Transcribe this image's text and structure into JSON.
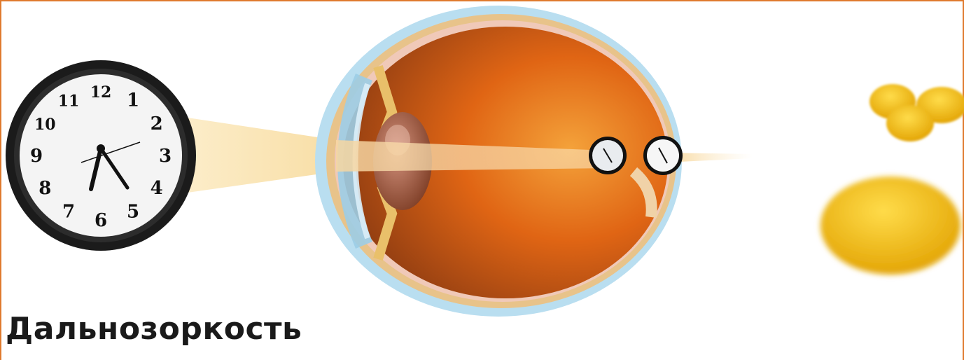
{
  "caption": "Дальнозоркость",
  "clock_numerals": [
    "12",
    "1",
    "2",
    "3",
    "4",
    "5",
    "6",
    "7",
    "8",
    "9",
    "10",
    "11"
  ],
  "colors": {
    "frame": "#e07a2e",
    "eye_inner": "#d35a10",
    "sclera": "#a9d7ee",
    "lemon": "#f0b400"
  },
  "icons": [
    "clock-icon",
    "eye-cross-section",
    "lemon-icon"
  ]
}
